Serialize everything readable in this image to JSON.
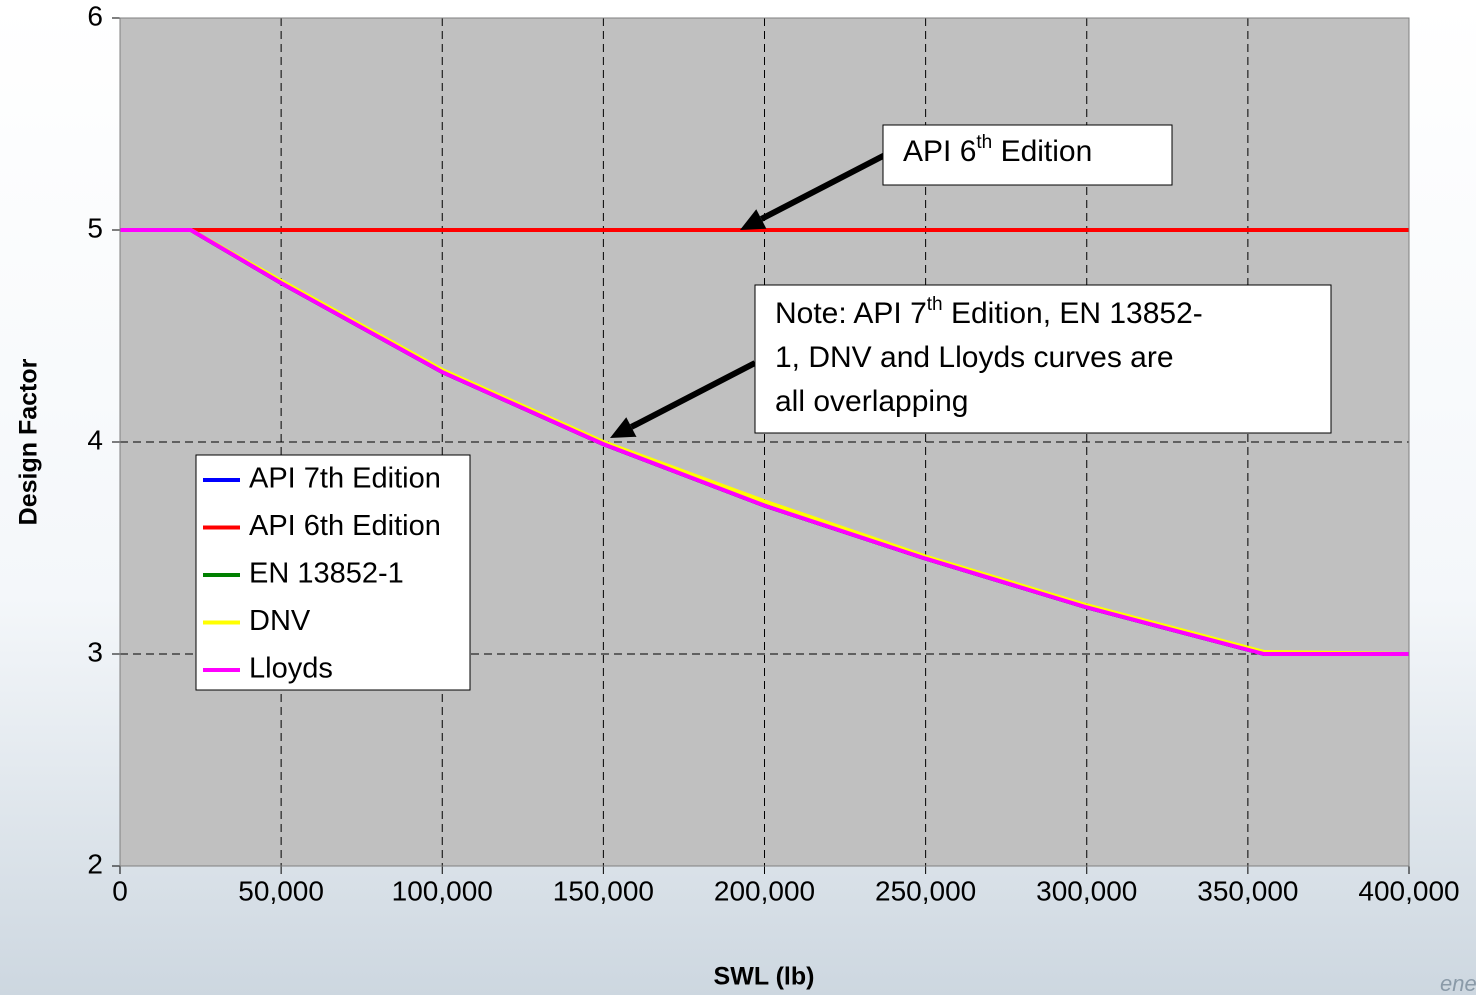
{
  "chart_data": {
    "type": "line",
    "x": [
      0,
      22000,
      50000,
      100000,
      150000,
      200000,
      250000,
      300000,
      355000,
      400000
    ],
    "series": [
      {
        "name": "API 7th Edition",
        "color": "#0000ff",
        "values": [
          5,
          5,
          4.75,
          4.33,
          3.99,
          3.7,
          3.45,
          3.22,
          3.0,
          3.0
        ]
      },
      {
        "name": "API 6th Edition",
        "color": "#ff0000",
        "values": [
          5,
          5,
          5,
          5,
          5,
          5,
          5,
          5,
          5,
          5
        ]
      },
      {
        "name": "EN 13852-1",
        "color": "#008000",
        "values": [
          5,
          5,
          4.75,
          4.33,
          3.99,
          3.7,
          3.45,
          3.22,
          3.0,
          3.0
        ]
      },
      {
        "name": "DNV",
        "color": "#ffff00",
        "values": [
          5,
          5,
          4.76,
          4.34,
          4.0,
          3.72,
          3.46,
          3.23,
          3.01,
          3.0
        ]
      },
      {
        "name": "Lloyds",
        "color": "#ff00ff",
        "values": [
          5,
          5,
          4.75,
          4.33,
          3.99,
          3.7,
          3.45,
          3.22,
          3.0,
          3.0
        ]
      }
    ],
    "xlim": [
      0,
      400000
    ],
    "xticks": [
      0,
      {
        "value": 50000,
        "label": "50,000"
      },
      {
        "value": 100000,
        "label": "100,000"
      },
      {
        "value": 150000,
        "label": "150,000"
      },
      {
        "value": 200000,
        "label": "200,000"
      },
      {
        "value": 250000,
        "label": "250,000"
      },
      {
        "value": 300000,
        "label": "300,000"
      },
      {
        "value": 350000,
        "label": "350,000"
      },
      {
        "value": 400000,
        "label": "400,000"
      }
    ],
    "ylim": [
      2,
      6
    ],
    "yticks": [
      2,
      3,
      4,
      5,
      6
    ],
    "grid": true,
    "xlabel": "SWL (lb)",
    "ylabel": "Design Factor",
    "annotations": [
      {
        "lines": [
          [
            "API 6",
            "th",
            " Edition"
          ]
        ]
      },
      {
        "lines": [
          [
            "Note: API 7",
            "th",
            " Edition, EN 13852-"
          ],
          [
            "1, DNV and Lloyds curves are"
          ],
          [
            "all overlapping"
          ]
        ]
      }
    ],
    "watermark": "energy"
  }
}
